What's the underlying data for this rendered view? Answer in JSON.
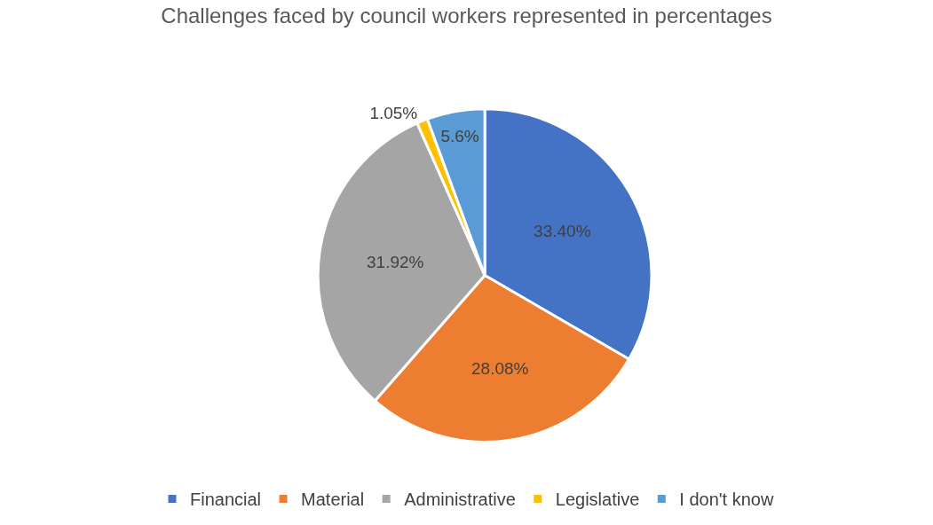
{
  "chart_data": {
    "type": "pie",
    "title": "Challenges faced by council workers represented in percentages",
    "categories": [
      "Financial",
      "Material",
      "Administrative",
      "Legislative",
      "I don't know"
    ],
    "values": [
      33.4,
      28.08,
      31.92,
      1.05,
      5.6
    ],
    "value_labels": [
      "33.40%",
      "28.08%",
      "31.92%",
      "1.05%",
      "5.6%"
    ],
    "colors": [
      "#4472c4",
      "#ed7d31",
      "#a5a5a5",
      "#ffc000",
      "#5b9bd5"
    ],
    "legend": "bottom"
  }
}
